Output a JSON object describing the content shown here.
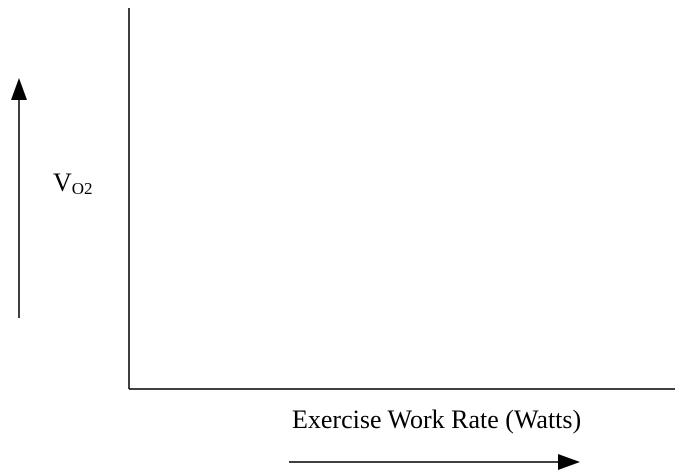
{
  "colors": {
    "axis": "#000000",
    "background": "#ffffff"
  },
  "chart_data": {
    "type": "line",
    "title": "",
    "ylabel": {
      "main": "V",
      "subscript": "O2"
    },
    "xlabel": "Exercise Work Rate (Watts)",
    "series": [],
    "grid": false,
    "legend": "none",
    "annotations": [
      {
        "kind": "arrow",
        "direction": "up",
        "meaning": "increasing VO2"
      },
      {
        "kind": "arrow",
        "direction": "right",
        "meaning": "increasing work rate"
      }
    ]
  }
}
